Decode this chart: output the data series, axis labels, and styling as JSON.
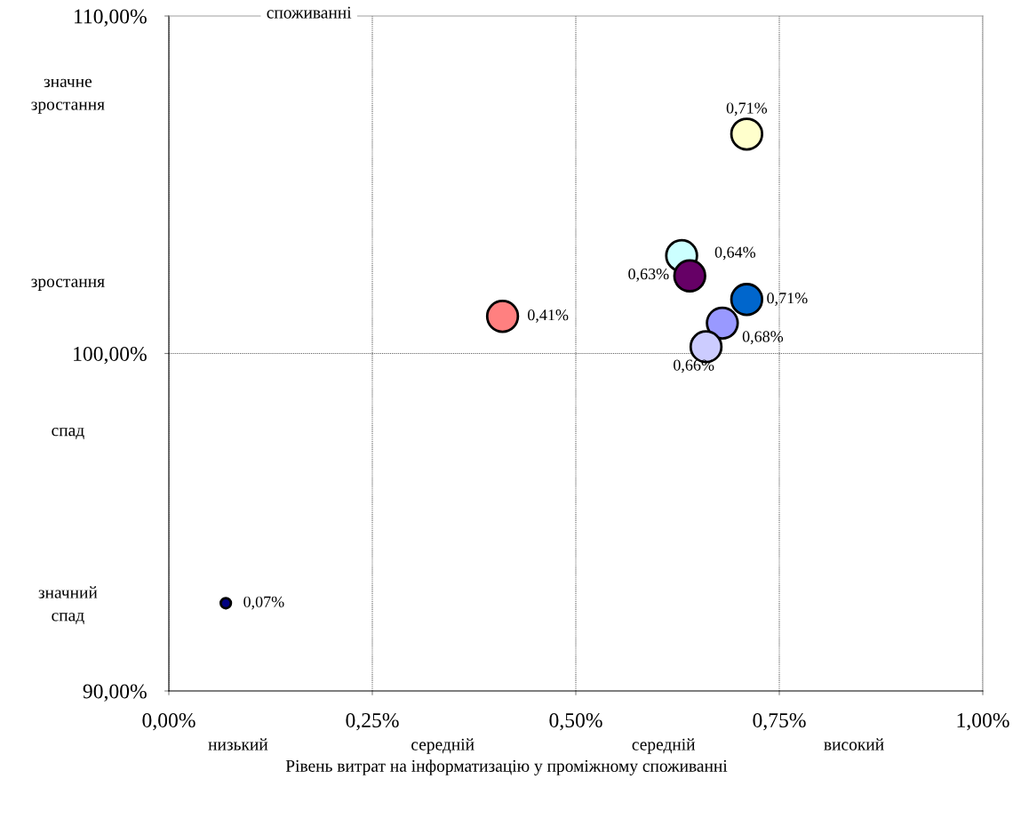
{
  "chart_data": {
    "type": "bubble",
    "xlabel": "Рівень витрат на інформатизацію у проміжному споживанні",
    "x": [
      0.71,
      0.63,
      0.64,
      0.71,
      0.68,
      0.66,
      0.41,
      0.07
    ],
    "values": [
      106.5,
      102.9,
      102.3,
      101.6,
      100.9,
      100.2,
      101.1,
      92.6
    ],
    "sizes": [
      1,
      1,
      1,
      1,
      1,
      1,
      1,
      0.11
    ],
    "colors": [
      "#ffffcc",
      "#ccffff",
      "#660066",
      "#0066cc",
      "#9999ff",
      "#ccccff",
      "#ff8080",
      "#000080"
    ],
    "xlim": [
      0,
      1
    ],
    "ylim": [
      90,
      110
    ],
    "xticks": [
      {
        "value": 0,
        "label": "0,00%"
      },
      {
        "value": 0.25,
        "label": "0,25%"
      },
      {
        "value": 0.5,
        "label": "0,50%"
      },
      {
        "value": 0.75,
        "label": "0,75%"
      },
      {
        "value": 1,
        "label": "1,00%"
      }
    ],
    "yticks": [
      {
        "value": 90,
        "label": "90,00%"
      },
      {
        "value": 100,
        "label": "100,00%"
      },
      {
        "value": 110,
        "label": "110,00%"
      }
    ],
    "grid": "x",
    "ref_lines": [
      {
        "axis": "y",
        "value": 100
      }
    ],
    "marker": "circle",
    "annotations": [
      "споживанні",
      "значне\nзростання",
      "зростання",
      "спад",
      "значний\nспад",
      "низький",
      "середній",
      "середній",
      "високий",
      {
        "text": "0,71%",
        "x": 0.71,
        "y": 106.5
      },
      {
        "text": "0,63%",
        "x": 0.63,
        "y": 102.9
      },
      {
        "text": "0,64%",
        "x": 0.64,
        "y": 102.3
      },
      {
        "text": "0,71%",
        "x": 0.71,
        "y": 101.6
      },
      {
        "text": "0,68%",
        "x": 0.68,
        "y": 100.9
      },
      {
        "text": "0,66%",
        "x": 0.66,
        "y": 100.2
      },
      {
        "text": "0,41%",
        "x": 0.41,
        "y": 101.1
      },
      {
        "text": "0,07%",
        "x": 0.07,
        "y": 92.6
      }
    ]
  }
}
